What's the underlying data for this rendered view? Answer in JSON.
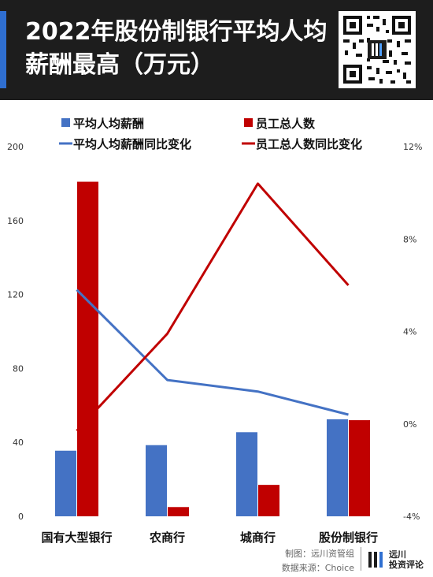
{
  "header": {
    "title_line1": "2022年股份制银行平均人均",
    "title_line2": "薪酬最高（万元）"
  },
  "chart_data": {
    "type": "bar",
    "title": "2022年股份制银行平均人均薪酬最高（万元）",
    "categories": [
      "国有大型银行",
      "农商行",
      "城商行",
      "股份制银行"
    ],
    "y_left": {
      "min": 0,
      "max": 200,
      "ticks": [
        "0",
        "40",
        "80",
        "120",
        "160",
        "200"
      ]
    },
    "y_right": {
      "min": -4,
      "max": 12,
      "ticks": [
        "-4%",
        "0%",
        "4%",
        "8%",
        "12%"
      ]
    },
    "series": [
      {
        "name": "平均人均薪酬",
        "kind": "bar",
        "axis": "left",
        "color": "#4472c4",
        "values": [
          35.5,
          38.5,
          45.5,
          52.5
        ]
      },
      {
        "name": "员工总人数",
        "kind": "bar",
        "axis": "left",
        "color": "#c00000",
        "values": [
          181,
          5,
          17,
          52
        ]
      },
      {
        "name": "平均人均薪酬同比变化",
        "kind": "line",
        "axis": "right",
        "color": "#4472c4",
        "values": [
          5.8,
          1.9,
          1.4,
          0.4
        ]
      },
      {
        "name": "员工总人数同比变化",
        "kind": "line",
        "axis": "right",
        "color": "#c00000",
        "values": [
          -0.3,
          3.9,
          10.4,
          6.0
        ]
      }
    ],
    "legend_position": "top",
    "grid": false
  },
  "footer": {
    "credit": "制图：远川资管组",
    "source": "数据来源：Choice",
    "logo_line1": "远川",
    "logo_line2": "投资评论"
  }
}
